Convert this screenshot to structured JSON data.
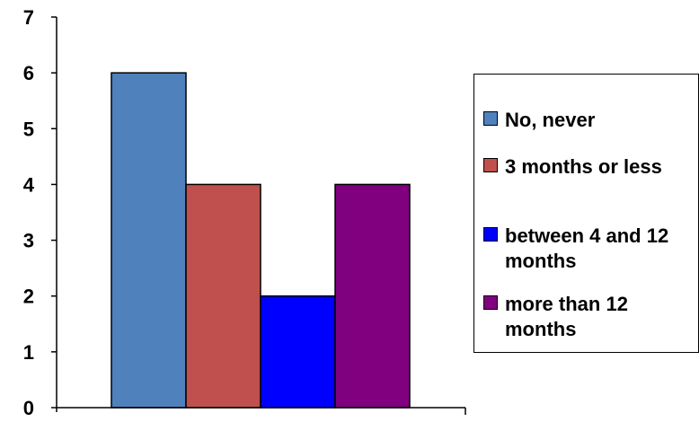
{
  "chart_data": {
    "type": "bar",
    "categories": [
      ""
    ],
    "series": [
      {
        "name": "No, never",
        "values": [
          6
        ],
        "color": "#4F81BD"
      },
      {
        "name": "3 months or less",
        "values": [
          4
        ],
        "color": "#C0504D"
      },
      {
        "name": "between 4 and 12 months",
        "values": [
          2
        ],
        "color": "#0000FF"
      },
      {
        "name": "more than 12 months",
        "values": [
          4
        ],
        "color": "#800080"
      }
    ],
    "title": "",
    "xlabel": "",
    "ylabel": "",
    "ylim": [
      0,
      7
    ],
    "yticks": [
      "0",
      "1",
      "2",
      "3",
      "4",
      "5",
      "6",
      "7"
    ],
    "grid": false,
    "legend_position": "right"
  }
}
